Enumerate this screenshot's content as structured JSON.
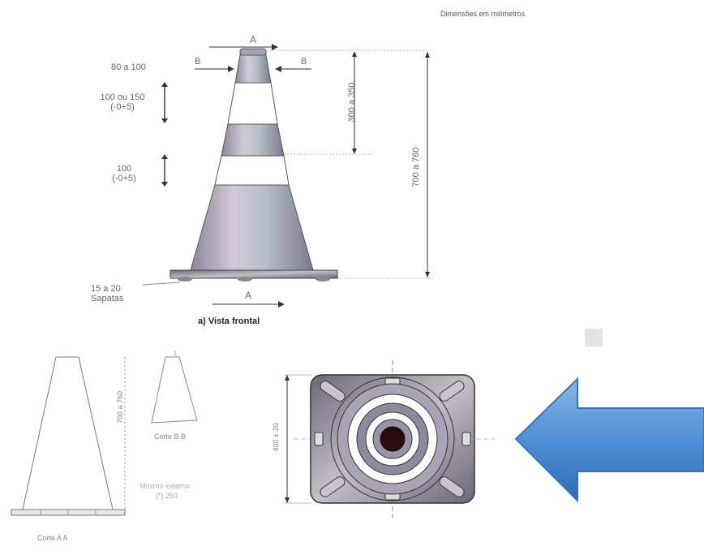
{
  "units_note": "Dimensões em milímetros",
  "front_view": {
    "caption": "a) Vista frontal",
    "section_a": "A",
    "section_b": "B",
    "top_width": "80 a 100",
    "band_height_1_line1": "100 ou 150",
    "band_height_1_line2": "(-0+5)",
    "band_height_2_line1": "100",
    "band_height_2_line2": "(-0+5)",
    "top_bands": "300 a 350",
    "total_height": "700 a 760",
    "feet_line1": "15 a 20",
    "feet_line2": "Sapatas"
  },
  "section_aa": {
    "caption": "Corte A A"
  },
  "section_bb": {
    "caption": "Corte B B",
    "height": "700 a 760",
    "wall_note_line1": "Mínimo externo",
    "wall_note_line2": "(*) 250"
  },
  "base_view": {
    "width": "400 ± 20"
  },
  "arrow": {
    "color": "#4a86c8",
    "direction": "left"
  }
}
